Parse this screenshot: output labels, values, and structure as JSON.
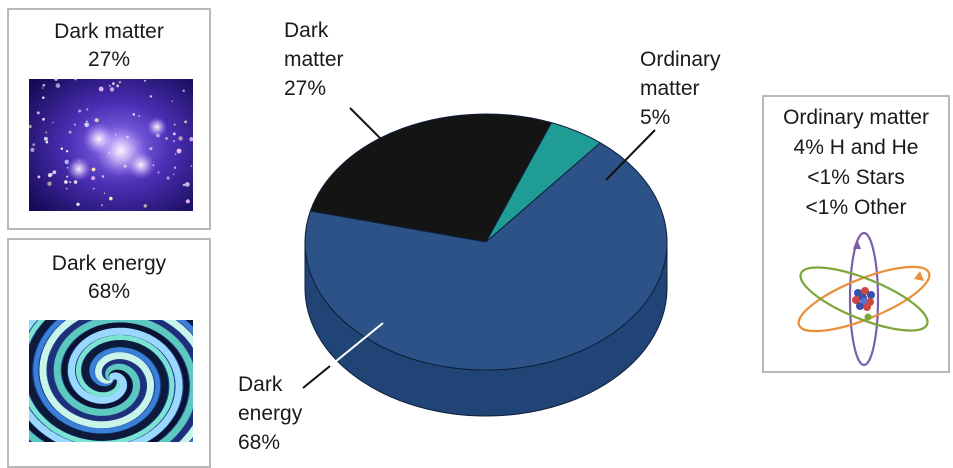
{
  "chart_data": {
    "type": "pie",
    "style": "3d",
    "slices": [
      {
        "label_lines": [
          "Dark",
          "matter",
          "27%"
        ],
        "value": 27,
        "color": "#141414"
      },
      {
        "label_lines": [
          "Ordinary",
          "matter",
          "5%"
        ],
        "value": 5,
        "color": "#1f9c96"
      },
      {
        "label_lines": [
          "Dark",
          "energy",
          "68%"
        ],
        "value": 68,
        "color": "#2c5287"
      }
    ]
  },
  "panels": {
    "dark_matter": {
      "title": "Dark matter",
      "value": "27%",
      "image": "galaxy-cluster-image"
    },
    "dark_energy": {
      "title": "Dark energy",
      "value": "68%",
      "image": "spiral-swirl-image"
    },
    "ordinary_matter": {
      "lines": [
        "Ordinary matter",
        "4% H and He",
        "<1% Stars",
        "<1% Other"
      ],
      "image": "atom-icon"
    }
  },
  "colors": {
    "dark_matter": "#141414",
    "ordinary_matter": "#1f9c96",
    "dark_energy_top": "#2c5287",
    "dark_energy_side": "#214476",
    "panel_border": "#b9b9b9"
  }
}
